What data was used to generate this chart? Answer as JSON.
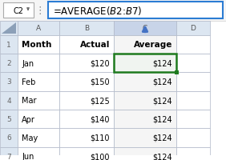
{
  "formula_bar_text": "=AVERAGE($B$2:$B$7)",
  "cell_ref": "C2",
  "col_headers": [
    "A",
    "B",
    "C",
    "D"
  ],
  "header_row": [
    "Month",
    "Actual",
    "Average",
    ""
  ],
  "rows": [
    [
      "Jan",
      "$120",
      "$124",
      ""
    ],
    [
      "Feb",
      "$150",
      "$124",
      ""
    ],
    [
      "Mar",
      "$125",
      "$124",
      ""
    ],
    [
      "Apr",
      "$140",
      "$124",
      ""
    ],
    [
      "May",
      "$110",
      "$124",
      ""
    ],
    [
      "Jun",
      "$100",
      "$124",
      ""
    ]
  ],
  "header_bg": "#dce6f1",
  "col_c_header_bg": "#c8d4e8",
  "formula_bar_border": "#2b7cd3",
  "cell_selected_border": "#1e7a1e",
  "arrow_color": "#4472c4",
  "grid_color": "#b0b8c8",
  "text_color": "#000000",
  "row_num_color": "#666666",
  "formula_font_size": 8.5,
  "cell_font_size": 7.0,
  "header_font_size": 7.5
}
